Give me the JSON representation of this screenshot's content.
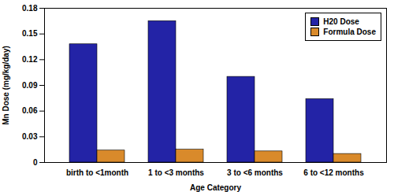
{
  "chart_data": {
    "type": "bar",
    "x_label": "Age Category",
    "y_label": "Mn Dose (mg/kg/day)",
    "categories": [
      "birth to <1month",
      "1 to <3 months",
      "3 to <6 months",
      "6 to <12 months"
    ],
    "series": [
      {
        "name": "H20 Dose",
        "color": "#2323a6",
        "values": [
          0.138,
          0.165,
          0.1,
          0.074
        ]
      },
      {
        "name": "Formula Dose",
        "color": "#d98a2b",
        "values": [
          0.014,
          0.015,
          0.013,
          0.01
        ]
      }
    ],
    "ylim": [
      0,
      0.18
    ],
    "yticks": [
      0,
      0.03,
      0.06,
      0.09,
      0.12,
      0.15,
      0.18
    ],
    "grid": false,
    "legend": "top-right"
  }
}
